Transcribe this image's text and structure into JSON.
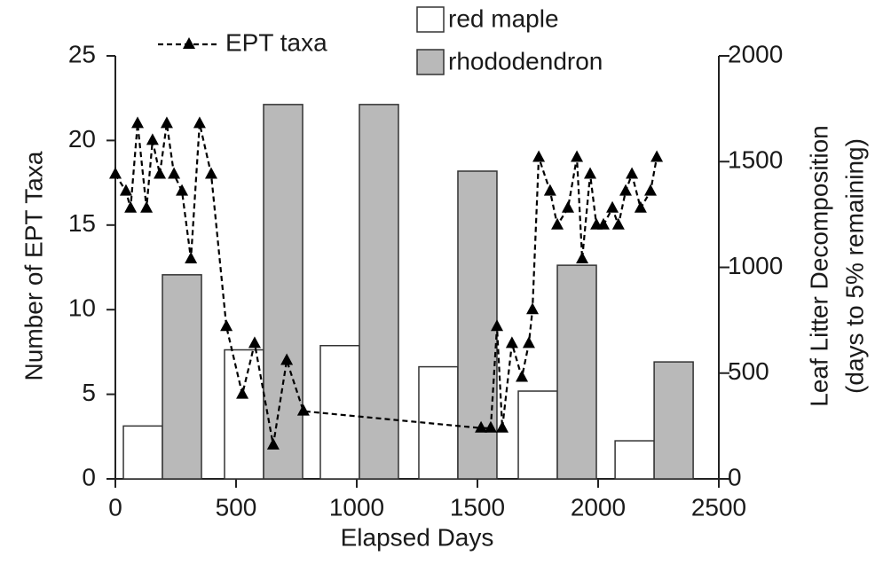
{
  "chart_data": {
    "type": "combo",
    "xlabel": "Elapsed Days",
    "ylabel": "Number of EPT Taxa",
    "y2label": [
      "Leaf Litter Decomposition",
      "(days to 5% remaining)"
    ],
    "xlim": [
      0,
      2500
    ],
    "xticks": [
      0,
      500,
      1000,
      1500,
      2000,
      2500
    ],
    "ylim": [
      0,
      25
    ],
    "yticks": [
      0,
      5,
      10,
      15,
      20,
      25
    ],
    "y2lim": [
      0,
      2000
    ],
    "y2ticks": [
      0,
      500,
      1000,
      1500,
      2000
    ],
    "grid": false,
    "x": [
      195,
      614,
      1011,
      1419,
      1831,
      2232
    ],
    "series": [
      {
        "name": "red maple",
        "type": "bar",
        "axis": "y2",
        "color": "#ffffff",
        "values": [
          250,
          610,
          630,
          530,
          415,
          180
        ]
      },
      {
        "name": "rhododendron",
        "type": "bar",
        "axis": "y2",
        "color": "#b9b9b9",
        "values": [
          965,
          1770,
          1770,
          1455,
          1010,
          553
        ]
      },
      {
        "name": "EPT taxa",
        "type": "line",
        "color": "#000000",
        "x": [
          0,
          44,
          63,
          92,
          129,
          154,
          184,
          213,
          243,
          276,
          313,
          349,
          397,
          460,
          526,
          577,
          654,
          710,
          779,
          1515,
          1555,
          1581,
          1603,
          1643,
          1684,
          1713,
          1728,
          1754,
          1801,
          1831,
          1875,
          1912,
          1934,
          1967,
          1993,
          2022,
          2059,
          2084,
          2114,
          2140,
          2176,
          2217,
          2243
        ],
        "values": [
          18,
          17,
          16,
          21,
          16,
          20,
          18,
          21,
          18,
          17,
          13,
          21,
          18,
          9,
          5,
          8,
          2,
          7,
          4,
          3,
          3,
          9,
          3,
          8,
          6,
          8,
          10,
          19,
          17,
          15,
          16,
          19,
          13,
          18,
          15,
          15,
          16,
          15,
          17,
          18,
          16,
          17,
          19
        ]
      }
    ]
  }
}
